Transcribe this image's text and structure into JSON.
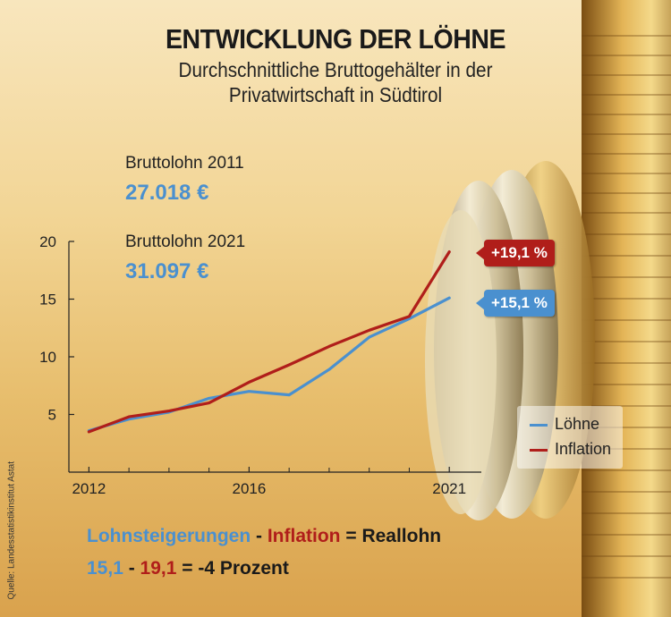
{
  "header": {
    "title": "ENTWICKLUNG DER LÖHNE",
    "subtitle_line1": "Durchschnittliche Bruttogehälter in der",
    "subtitle_line2": "Privatwirtschaft in Südtirol"
  },
  "stats": [
    {
      "label": "Bruttolohn 2011",
      "value": "27.018 €"
    },
    {
      "label": "Bruttolohn 2021",
      "value": "31.097 €"
    }
  ],
  "chart_data": {
    "type": "line",
    "title": "",
    "xlabel": "",
    "ylabel": "",
    "x": [
      2012,
      2013,
      2014,
      2015,
      2016,
      2017,
      2018,
      2019,
      2020,
      2021
    ],
    "xlim": [
      2011.5,
      2021.8
    ],
    "ylim": [
      0,
      20
    ],
    "y_ticks": [
      5,
      10,
      15,
      20
    ],
    "x_ticks": [
      "2012",
      "2016",
      "2021"
    ],
    "x_tick_values": [
      2012,
      2016,
      2021
    ],
    "series": [
      {
        "name": "Löhne",
        "color": "#4a90cf",
        "values": [
          3.6,
          4.6,
          5.2,
          6.4,
          7.0,
          6.7,
          8.9,
          11.7,
          13.3,
          15.1
        ]
      },
      {
        "name": "Inflation",
        "color": "#b01e1a",
        "values": [
          3.5,
          4.8,
          5.3,
          6.0,
          7.8,
          9.3,
          10.9,
          12.3,
          13.5,
          19.1
        ]
      }
    ],
    "end_labels": [
      "+19,1 %",
      "+15,1 %"
    ],
    "grid": false,
    "legend_position": "bottom-right"
  },
  "formula": {
    "line1": [
      "Lohnsteigerungen",
      " - ",
      "Inflation",
      " = ",
      "Reallohn"
    ],
    "line2": [
      "15,1",
      " - ",
      "19,1",
      " = ",
      "-4 Prozent"
    ]
  },
  "source": "Quelle: Landesstatistikinstitut Astat"
}
